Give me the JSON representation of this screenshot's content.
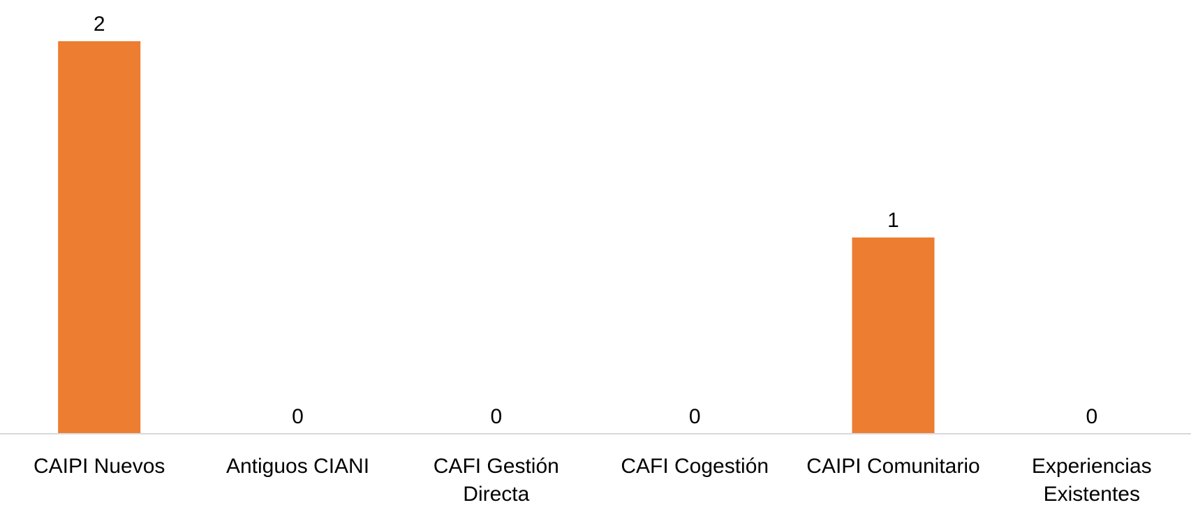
{
  "chart_data": {
    "type": "bar",
    "categories": [
      [
        "CAIPI Nuevos"
      ],
      [
        "Antiguos CIANI"
      ],
      [
        "CAFI Gestión",
        "Directa"
      ],
      [
        "CAFI Cogestión"
      ],
      [
        "CAIPI Comunitario"
      ],
      [
        "Experiencias",
        "Existentes"
      ]
    ],
    "values": [
      2,
      0,
      0,
      0,
      1,
      0
    ],
    "ylim": [
      0,
      2
    ],
    "grid": false,
    "legend": "none",
    "colors": {
      "bar": "#ED7D31",
      "axis": "#D9D9D9",
      "text": "#000000"
    }
  }
}
